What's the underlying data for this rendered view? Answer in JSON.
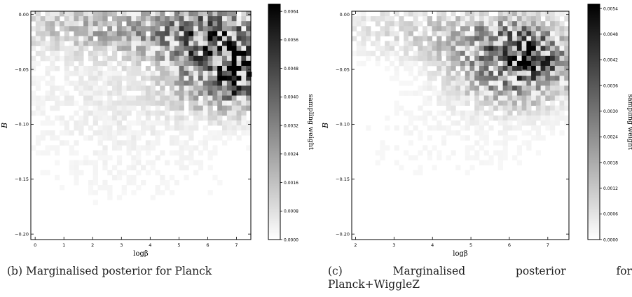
{
  "captions": {
    "b": "(b) Marginalised posterior for Planck",
    "c_line1": [
      "(c)",
      "Marginalised",
      "posterior",
      "for"
    ],
    "c_line2": "Planck+WiggleZ"
  },
  "chart_data": [
    {
      "type": "heatmap",
      "title": "",
      "xlabel": "logβ",
      "ylabel": "B",
      "colorbar_label": "sampling weight",
      "colormap": [
        "#ffffff",
        "#000000"
      ],
      "xlim": [
        -0.15,
        7.5
      ],
      "ylim": [
        -0.205,
        0.003
      ],
      "x_ticks": [
        0,
        1,
        2,
        3,
        4,
        5,
        6,
        7
      ],
      "x_tick_labels": [
        "0",
        "1",
        "2",
        "3",
        "4",
        "5",
        "6",
        "7"
      ],
      "y_ticks": [
        0.0,
        -0.05,
        -0.1,
        -0.15,
        -0.2
      ],
      "y_tick_labels": [
        "0.00",
        "−0.05",
        "−0.10",
        "−0.15",
        "−0.20"
      ],
      "cbar_range": [
        0,
        0.0066
      ],
      "cbar_ticks": [
        0.0,
        0.0008,
        0.0016,
        0.0024,
        0.0032,
        0.004,
        0.0048,
        0.0056,
        0.0064
      ],
      "cbar_tick_labels": [
        "0.0000",
        "0.0008",
        "0.0016",
        "0.0024",
        "0.0032",
        "0.0040",
        "0.0048",
        "0.0056",
        "0.0064"
      ],
      "density": [
        {
          "x": 1.2,
          "y": -0.012,
          "weight": 0.0014,
          "sx": 1.6,
          "sy": 0.016
        },
        {
          "x": 3.2,
          "y": -0.014,
          "weight": 0.0012,
          "sx": 1.4,
          "sy": 0.016
        },
        {
          "x": 5.3,
          "y": -0.018,
          "weight": 0.0018,
          "sx": 1.3,
          "sy": 0.02
        },
        {
          "x": 6.3,
          "y": -0.032,
          "weight": 0.0038,
          "sx": 1.2,
          "sy": 0.028
        },
        {
          "x": 7.1,
          "y": -0.048,
          "weight": 0.004,
          "sx": 0.6,
          "sy": 0.02
        },
        {
          "x": 6.5,
          "y": -0.07,
          "weight": 0.0012,
          "sx": 1.1,
          "sy": 0.015
        },
        {
          "x": 3.0,
          "y": -0.07,
          "weight": 0.0005,
          "sx": 2.6,
          "sy": 0.03
        },
        {
          "x": 3.5,
          "y": -0.135,
          "weight": 0.00025,
          "sx": 3.2,
          "sy": 0.04
        }
      ],
      "peak": {
        "x": 7.45,
        "y": -0.0545,
        "weight": 0.0064
      }
    },
    {
      "type": "heatmap",
      "title": "",
      "xlabel": "logβ",
      "ylabel": "B",
      "colorbar_label": "sampling weight",
      "colormap": [
        "#ffffff",
        "#000000"
      ],
      "xlim": [
        1.9,
        7.55
      ],
      "ylim": [
        -0.205,
        0.003
      ],
      "x_ticks": [
        2,
        3,
        4,
        5,
        6,
        7
      ],
      "x_tick_labels": [
        "2",
        "3",
        "4",
        "5",
        "6",
        "7"
      ],
      "y_ticks": [
        0.0,
        -0.05,
        -0.1,
        -0.15,
        -0.2
      ],
      "y_tick_labels": [
        "0.00",
        "−0.05",
        "−0.10",
        "−0.15",
        "−0.20"
      ],
      "cbar_range": [
        0,
        0.0055
      ],
      "cbar_ticks": [
        0.0,
        0.0006,
        0.0012,
        0.0018,
        0.0024,
        0.003,
        0.0036,
        0.0042,
        0.0048,
        0.0054
      ],
      "cbar_tick_labels": [
        "0.0000",
        "0.0006",
        "0.0012",
        "0.0018",
        "0.0024",
        "0.0030",
        "0.0036",
        "0.0042",
        "0.0048",
        "0.0054"
      ],
      "density": [
        {
          "x": 3.3,
          "y": -0.012,
          "weight": 0.0008,
          "sx": 1.4,
          "sy": 0.018
        },
        {
          "x": 5.0,
          "y": -0.025,
          "weight": 0.001,
          "sx": 1.0,
          "sy": 0.02
        },
        {
          "x": 6.5,
          "y": -0.045,
          "weight": 0.0036,
          "sx": 0.8,
          "sy": 0.022
        },
        {
          "x": 6.1,
          "y": -0.025,
          "weight": 0.0014,
          "sx": 0.9,
          "sy": 0.018
        },
        {
          "x": 5.6,
          "y": -0.06,
          "weight": 0.001,
          "sx": 0.9,
          "sy": 0.018
        },
        {
          "x": 4.5,
          "y": -0.11,
          "weight": 0.0002,
          "sx": 2.5,
          "sy": 0.04
        }
      ],
      "peak": {
        "x": 6.4,
        "y": -0.048,
        "weight": 0.0054
      }
    }
  ]
}
